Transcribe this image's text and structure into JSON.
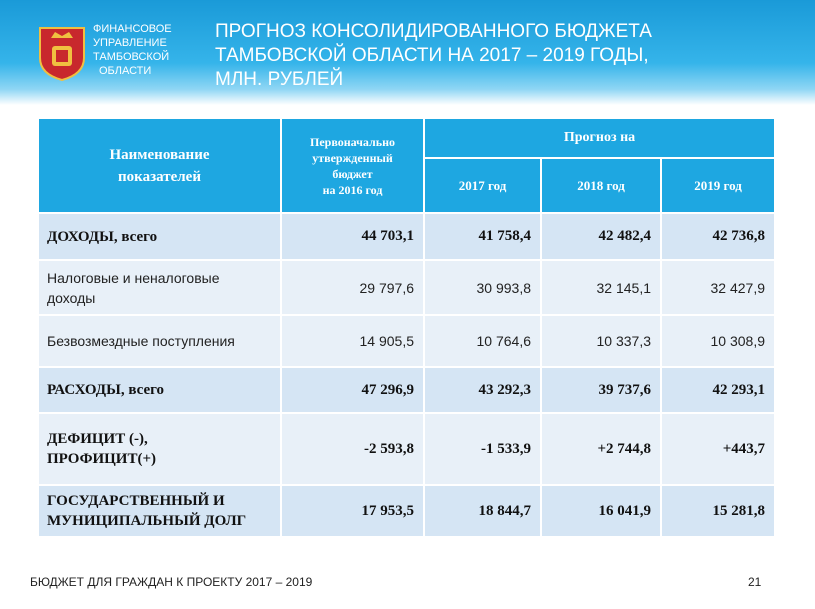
{
  "logo": {
    "lines": [
      "ФИНАНСОВОЕ",
      "УПРАВЛЕНИЕ",
      "ТАМБОВСКОЙ",
      "ОБЛАСТИ"
    ]
  },
  "header": {
    "title_lines": [
      "ПРОГНОЗ КОНСОЛИДИРОВАННОГО БЮДЖЕТА",
      "ТАМБОВСКОЙ ОБЛАСТИ НА 2017 – 2019 ГОДЫ,",
      "МЛН. РУБЛЕЙ"
    ]
  },
  "table": {
    "name_header": [
      "Наименование",
      "показателей"
    ],
    "budget_header": [
      "Первоначально",
      "утвержденный",
      "бюджет",
      "на 2016 год"
    ],
    "forecast_header": "Прогноз  на",
    "years": [
      "2017 год",
      "2018 год",
      "2019 год"
    ],
    "rows": [
      {
        "name": [
          "ДОХОДЫ, всего"
        ],
        "values": [
          "44 703,1",
          "41 758,4",
          "42 482,4",
          "42 736,8"
        ]
      },
      {
        "name": [
          "Налоговые и неналоговые",
          "доходы"
        ],
        "values": [
          "29 797,6",
          "30 993,8",
          "32 145,1",
          "32 427,9"
        ]
      },
      {
        "name": [
          "Безвозмездные поступления"
        ],
        "values": [
          "14 905,5",
          "10 764,6",
          "10 337,3",
          "10 308,9"
        ]
      },
      {
        "name": [
          "РАСХОДЫ, всего"
        ],
        "values": [
          "47 296,9",
          "43 292,3",
          "39 737,6",
          "42 293,1"
        ]
      },
      {
        "name": [
          "ДЕФИЦИТ (-),",
          "ПРОФИЦИТ(+)"
        ],
        "values": [
          "-2 593,8",
          "-1 533,9",
          "+2 744,8",
          "+443,7"
        ]
      },
      {
        "name": [
          "ГОСУДАРСТВЕННЫЙ  И",
          "МУНИЦИПАЛЬНЫЙ  ДОЛГ"
        ],
        "values": [
          "17 953,5",
          "18 844,7",
          "16 041,9",
          "15 281,8"
        ]
      }
    ]
  },
  "footer": {
    "text": "БЮДЖЕТ ДЛЯ ГРАЖДАН К ПРОЕКТУ 2017 – 2019",
    "page": "21"
  }
}
